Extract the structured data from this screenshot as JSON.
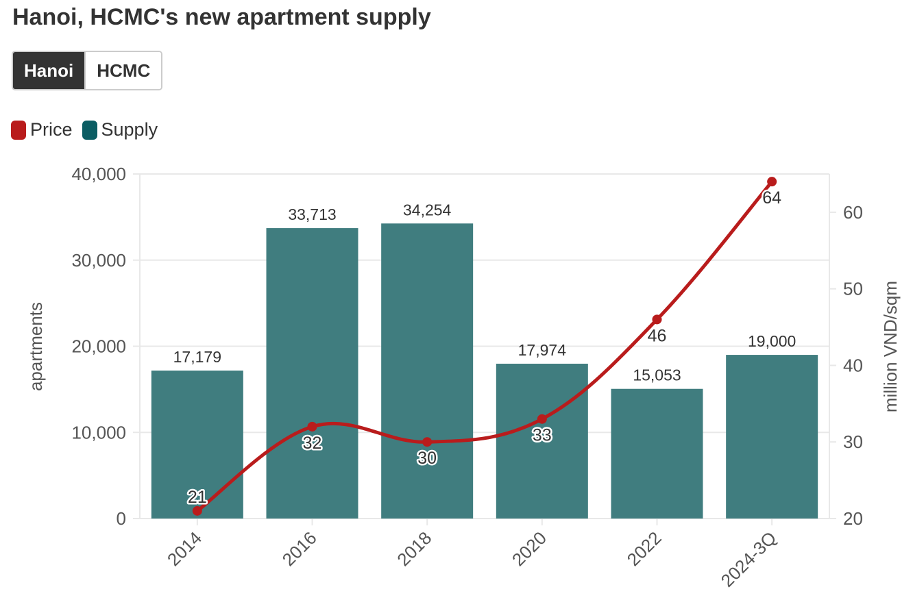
{
  "title": "Hanoi, HCMC's new apartment supply",
  "tabs": [
    {
      "label": "Hanoi",
      "active": true
    },
    {
      "label": "HCMC",
      "active": false
    }
  ],
  "legend": [
    {
      "label": "Price",
      "color": "#b91c1c"
    },
    {
      "label": "Supply",
      "color": "#0b5d63"
    }
  ],
  "chart_data": {
    "type": "bar",
    "categories": [
      "2014",
      "2016",
      "2018",
      "2020",
      "2022",
      "2024-3Q"
    ],
    "series": [
      {
        "name": "Supply",
        "type": "bar",
        "axis": "left",
        "color": "#407d7f",
        "values": [
          17179,
          33713,
          34254,
          17974,
          15053,
          19000
        ],
        "labels": [
          "17,179",
          "33,713",
          "34,254",
          "17,974",
          "15,053",
          "19,000"
        ]
      },
      {
        "name": "Price",
        "type": "line",
        "axis": "right",
        "color": "#b91c1c",
        "values": [
          21,
          32,
          30,
          33,
          46,
          64
        ],
        "labels": [
          "21",
          "32",
          "30",
          "33",
          "46",
          "64"
        ]
      }
    ],
    "ylabel": "apartments",
    "y2label": "million VND/sqm",
    "ylim": [
      0,
      40000
    ],
    "y2lim": [
      20,
      65
    ],
    "yticks": [
      0,
      10000,
      20000,
      30000,
      40000
    ],
    "ytick_labels": [
      "0",
      "10,000",
      "20,000",
      "30,000",
      "40,000"
    ],
    "y2ticks": [
      20,
      30,
      40,
      50,
      60
    ],
    "y2tick_labels": [
      "20",
      "30",
      "40",
      "50",
      "60"
    ],
    "grid": true,
    "legend_position": "top-left"
  }
}
